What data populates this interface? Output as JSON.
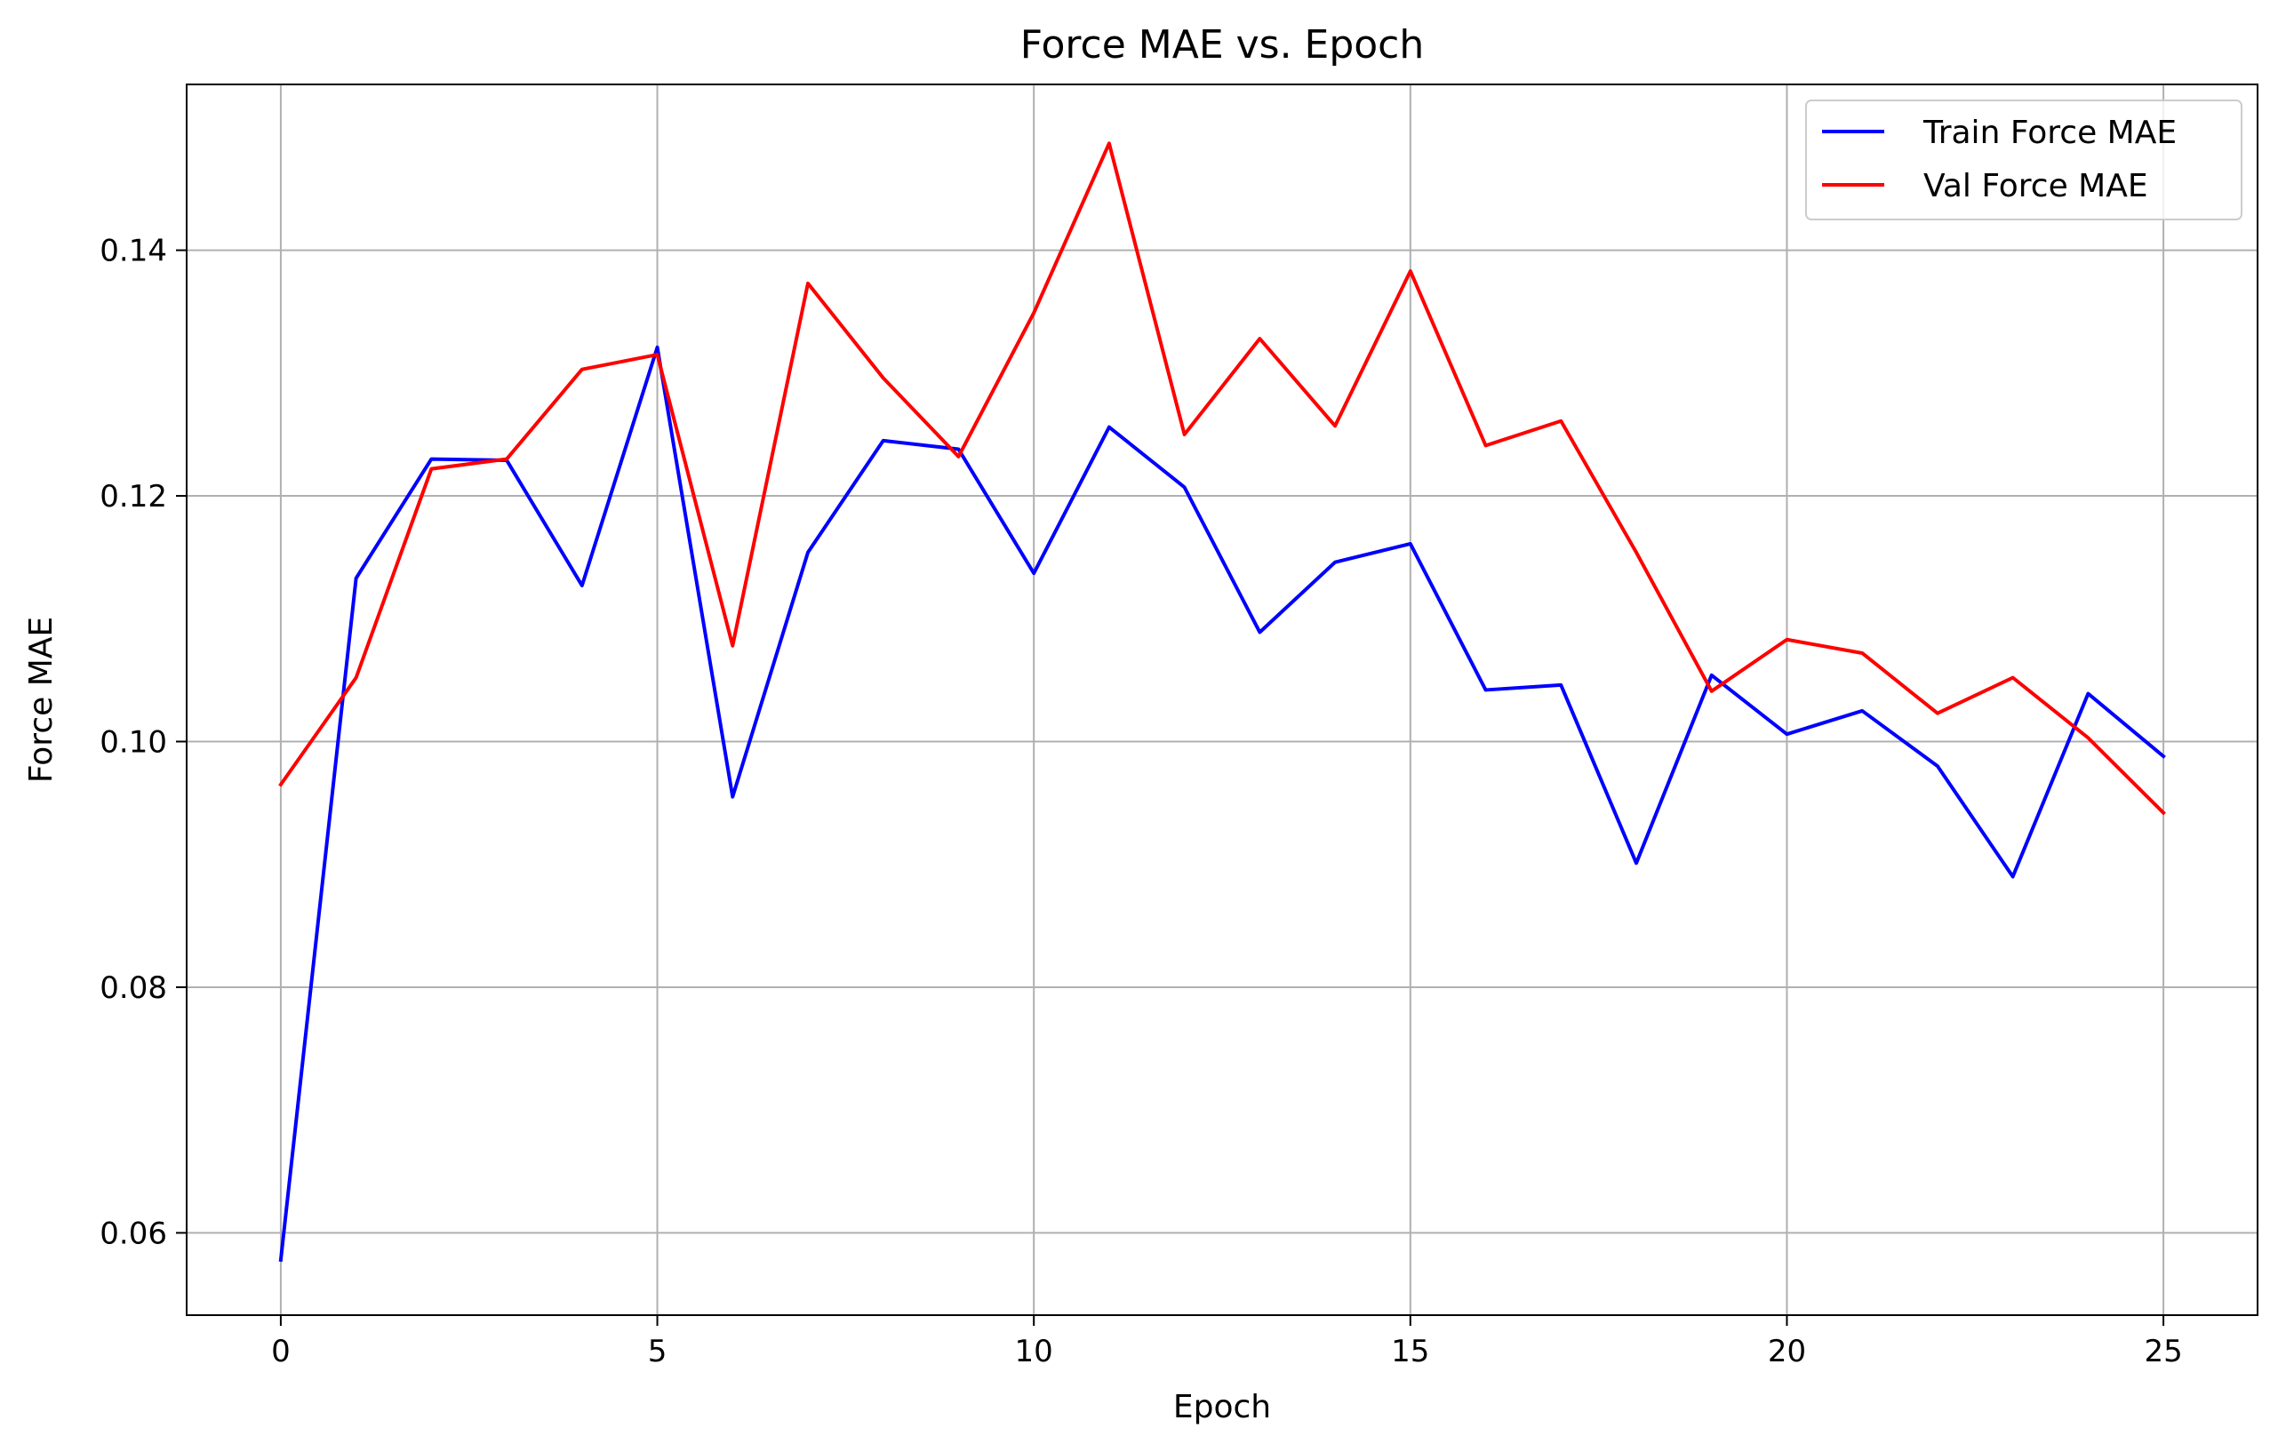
{
  "chart_data": {
    "type": "line",
    "title": "Force MAE vs. Epoch",
    "xlabel": "Epoch",
    "ylabel": "Force MAE",
    "xlim": [
      -1.25,
      26.25
    ],
    "ylim": [
      0.0533,
      0.1535
    ],
    "xticks": [
      0,
      5,
      10,
      15,
      20,
      25
    ],
    "yticks": [
      0.06,
      0.08,
      0.1,
      0.12,
      0.14
    ],
    "ytick_labels": [
      "0.06",
      "0.08",
      "0.10",
      "0.12",
      "0.14"
    ],
    "grid": true,
    "legend_position": "top-right",
    "x": [
      0,
      1,
      2,
      3,
      4,
      5,
      6,
      7,
      8,
      9,
      10,
      11,
      12,
      13,
      14,
      15,
      16,
      17,
      18,
      19,
      20,
      21,
      22,
      23,
      24,
      25
    ],
    "series": [
      {
        "name": "Train Force MAE",
        "color": "#0000ff",
        "values": [
          0.0578,
          0.1133,
          0.123,
          0.1229,
          0.1127,
          0.1321,
          0.0955,
          0.1154,
          0.1245,
          0.1238,
          0.1137,
          0.1256,
          0.1207,
          0.1089,
          0.1146,
          0.1161,
          0.1042,
          0.1046,
          0.0901,
          0.1054,
          0.1006,
          0.1025,
          0.098,
          0.089,
          0.1039,
          0.0988
        ]
      },
      {
        "name": "Val Force MAE",
        "color": "#ff0000",
        "values": [
          0.0965,
          0.1052,
          0.1222,
          0.123,
          0.1303,
          0.1315,
          0.1078,
          0.1373,
          0.1296,
          0.1232,
          0.1349,
          0.1487,
          0.125,
          0.1328,
          0.1257,
          0.1383,
          0.1241,
          0.1261,
          0.1154,
          0.1041,
          0.1083,
          0.1072,
          0.1023,
          0.1052,
          0.1003,
          0.0942
        ]
      }
    ]
  }
}
